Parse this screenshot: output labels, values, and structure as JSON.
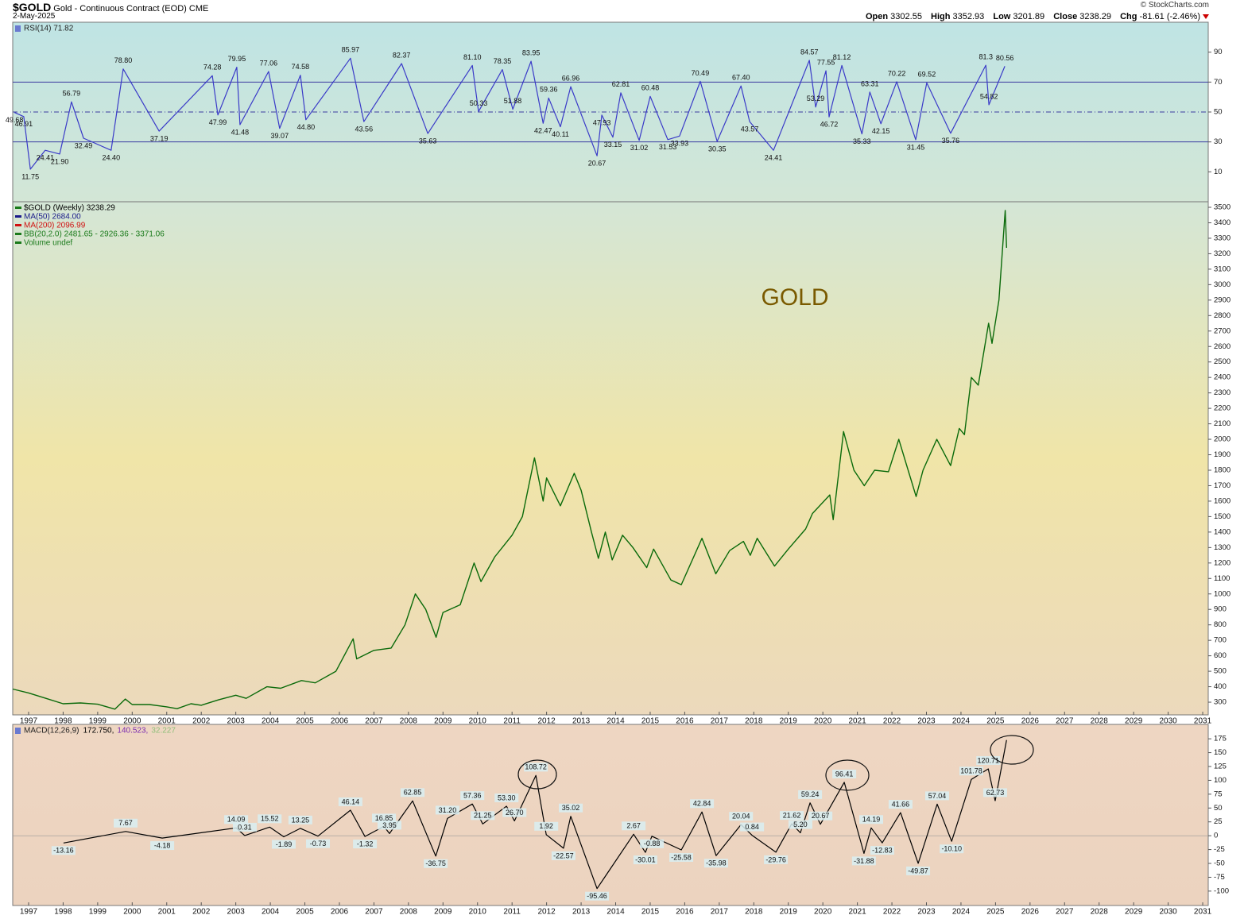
{
  "header": {
    "symbol": "$GOLD",
    "name": "Gold - Continuous Contract (EOD)",
    "exchange": "CME",
    "date": "2-May-2025",
    "credit": "© StockCharts.com",
    "quote": [
      {
        "label": "Open",
        "value": 3302.55
      },
      {
        "label": "High",
        "value": 3352.93
      },
      {
        "label": "Low",
        "value": 3201.89
      },
      {
        "label": "Close",
        "value": 3238.29
      },
      {
        "label": "Chg",
        "value": -81.61
      }
    ],
    "change_pct": "(-2.46%)"
  },
  "chart_data": [
    {
      "type": "line",
      "title": "RSI(14) 71.82",
      "color": "#3a3ac8",
      "background": [
        "#bfe4e4",
        "#d3e6d6"
      ],
      "xlim": [
        1996.54,
        2031.16
      ],
      "ylim": [
        -10,
        110
      ],
      "yticks": [
        10,
        30,
        50,
        70,
        90
      ],
      "hlines": [
        70,
        50,
        30
      ],
      "hline_dash": [
        false,
        true,
        false
      ],
      "data_labels": true,
      "x": [
        1996.59,
        1996.86,
        1997.05,
        1997.48,
        1997.9,
        1998.24,
        1998.59,
        1999.39,
        1999.74,
        2000.78,
        2002.32,
        2002.48,
        2003.03,
        2003.12,
        2003.95,
        2004.27,
        2004.87,
        2005.03,
        2006.32,
        2006.71,
        2007.8,
        2008.56,
        2009.85,
        2010.03,
        2010.72,
        2011.02,
        2011.55,
        2011.9,
        2012.06,
        2012.4,
        2012.7,
        2013.46,
        2013.6,
        2013.92,
        2014.15,
        2014.68,
        2015.0,
        2015.51,
        2015.85,
        2016.45,
        2016.94,
        2017.63,
        2017.88,
        2018.57,
        2019.61,
        2019.79,
        2020.09,
        2020.18,
        2020.55,
        2021.13,
        2021.36,
        2021.68,
        2022.14,
        2022.69,
        2023.01,
        2023.7,
        2024.72,
        2024.81,
        2025.27
      ],
      "values": [
        49.68,
        46.91,
        11.75,
        24.41,
        21.9,
        56.79,
        32.49,
        24.4,
        78.8,
        37.19,
        74.28,
        47.99,
        79.95,
        41.48,
        77.06,
        39.07,
        74.58,
        44.8,
        85.97,
        43.56,
        82.37,
        35.63,
        81.1,
        50.33,
        78.35,
        51.88,
        83.95,
        42.47,
        59.36,
        40.11,
        66.96,
        20.67,
        47.93,
        33.15,
        62.81,
        31.02,
        60.48,
        31.53,
        33.93,
        70.49,
        30.35,
        67.4,
        43.57,
        24.41,
        84.57,
        53.29,
        77.55,
        46.72,
        81.12,
        35.33,
        63.31,
        42.15,
        70.22,
        31.45,
        69.52,
        35.76,
        81.3,
        54.82,
        80.56
      ],
      "value_labels": [
        "49.68",
        "46.91",
        "11.75",
        "24.41",
        "21.90",
        "56.79",
        "32.49",
        "24.40",
        "78.80",
        "37.19",
        "74.28",
        "47.99",
        "79.95",
        "41.48",
        "77.06",
        "39.07",
        "74.58",
        "44.80",
        "85.97",
        "43.56",
        "82.37",
        "35.63",
        "81.10",
        "50.33",
        "78.35",
        "51.88",
        "83.95",
        "42.47",
        "59.36",
        "40.11",
        "66.96",
        "20.67",
        "47.93",
        "33.15",
        "62.81",
        "31.02",
        "60.48",
        "31.53",
        "33.93",
        "70.49",
        "30.35",
        "67.40",
        "43.57",
        "24.41",
        "84.57",
        "53.29",
        "77.55",
        "46.72",
        "81.12",
        "35.33",
        "63.31",
        "42.15",
        "70.22",
        "31.45",
        "69.52",
        "35.76",
        "81.3",
        "54.82",
        "80.56"
      ]
    },
    {
      "type": "line",
      "color": "#0a6a0a",
      "background": [
        "#d4e6d6",
        "#f0e5a8",
        "#ecd9bc"
      ],
      "legend": [
        {
          "label": "$GOLD (Weekly) 3238.29",
          "color": "#000000"
        },
        {
          "label": "MA(50) 2684.00",
          "color": "#1a1a8a"
        },
        {
          "label": "MA(200) 2096.99",
          "color": "#d01010"
        },
        {
          "label": "BB(20,2.0) 2481.65 - 2926.36 - 3371.06",
          "color": "#1a7a1a"
        },
        {
          "label": "Volume undef",
          "color": "#1a7a1a"
        }
      ],
      "annotations": [
        "GOLD"
      ],
      "xlim": [
        1996.54,
        2031.16
      ],
      "xticks": [
        1997,
        1998,
        1999,
        2000,
        2001,
        2002,
        2003,
        2004,
        2005,
        2006,
        2007,
        2008,
        2009,
        2010,
        2011,
        2012,
        2013,
        2014,
        2015,
        2016,
        2017,
        2018,
        2019,
        2020,
        2021,
        2022,
        2023,
        2024,
        2025,
        2026,
        2027,
        2028,
        2029,
        2030,
        2031
      ],
      "ylim": [
        218,
        3536
      ],
      "yticks": [
        300,
        400,
        500,
        600,
        700,
        800,
        900,
        1000,
        1100,
        1200,
        1300,
        1400,
        1500,
        1600,
        1700,
        1800,
        1900,
        2000,
        2100,
        2200,
        2300,
        2400,
        2500,
        2600,
        2700,
        2800,
        2900,
        3000,
        3100,
        3200,
        3300,
        3400,
        3500
      ],
      "x": [
        1996.54,
        1997.0,
        1997.5,
        1998.0,
        1998.5,
        1999.0,
        1999.5,
        1999.8,
        2000.0,
        2000.5,
        2001.0,
        2001.3,
        2001.7,
        2002.0,
        2002.5,
        2003.0,
        2003.3,
        2003.9,
        2004.3,
        2004.9,
        2005.3,
        2005.9,
        2006.4,
        2006.5,
        2007.0,
        2007.5,
        2007.9,
        2008.2,
        2008.5,
        2008.8,
        2009.0,
        2009.5,
        2009.9,
        2010.1,
        2010.5,
        2011.0,
        2011.3,
        2011.65,
        2011.9,
        2012.0,
        2012.4,
        2012.8,
        2013.0,
        2013.3,
        2013.5,
        2013.7,
        2013.9,
        2014.2,
        2014.5,
        2014.9,
        2015.1,
        2015.6,
        2015.9,
        2016.5,
        2016.9,
        2017.3,
        2017.7,
        2017.9,
        2018.1,
        2018.6,
        2019.0,
        2019.5,
        2019.7,
        2020.2,
        2020.3,
        2020.6,
        2020.9,
        2021.2,
        2021.5,
        2021.9,
        2022.2,
        2022.7,
        2022.9,
        2023.3,
        2023.7,
        2023.95,
        2024.1,
        2024.3,
        2024.5,
        2024.8,
        2024.9,
        2025.1,
        2025.28,
        2025.32
      ],
      "values": [
        385,
        360,
        325,
        290,
        295,
        287,
        255,
        320,
        285,
        285,
        270,
        258,
        290,
        280,
        315,
        345,
        325,
        400,
        390,
        440,
        425,
        500,
        710,
        580,
        635,
        650,
        800,
        1000,
        900,
        720,
        880,
        930,
        1200,
        1080,
        1240,
        1380,
        1500,
        1880,
        1600,
        1750,
        1570,
        1780,
        1670,
        1400,
        1230,
        1400,
        1220,
        1380,
        1300,
        1170,
        1290,
        1090,
        1060,
        1360,
        1130,
        1280,
        1340,
        1250,
        1360,
        1180,
        1290,
        1420,
        1520,
        1640,
        1480,
        2050,
        1800,
        1700,
        1800,
        1790,
        2000,
        1630,
        1800,
        2000,
        1830,
        2070,
        2030,
        2400,
        2350,
        2750,
        2620,
        2900,
        3480,
        3238
      ]
    },
    {
      "type": "line",
      "title": "MACD(12,26,9)",
      "readout": [
        {
          "value": 172.75,
          "label": "172.750,",
          "color": "#000000"
        },
        {
          "value": 140.523,
          "label": "140.523,",
          "color": "#7a2ab0"
        },
        {
          "value": 32.227,
          "label": "32.227",
          "color": "#8fbf7a"
        }
      ],
      "color": "#000000",
      "background": [
        "#eed6c2",
        "#ecd3bf"
      ],
      "data_labels": true,
      "xlim": [
        1996.54,
        2031.16
      ],
      "xticks": [
        1997,
        1998,
        1999,
        2000,
        2001,
        2002,
        2003,
        2004,
        2005,
        2006,
        2007,
        2008,
        2009,
        2010,
        2011,
        2012,
        2013,
        2014,
        2015,
        2016,
        2017,
        2018,
        2019,
        2020,
        2021,
        2022,
        2023,
        2024,
        2025,
        2026,
        2027,
        2028,
        2029,
        2030,
        2031
      ],
      "ylim": [
        -126,
        201
      ],
      "yticks": [
        -100,
        -75,
        -50,
        -25,
        0,
        25,
        50,
        75,
        100,
        125,
        150,
        175
      ],
      "x": [
        1998.01,
        1999.81,
        2000.87,
        2003.01,
        2003.26,
        2003.98,
        2004.39,
        2004.87,
        2005.38,
        2006.32,
        2006.74,
        2007.29,
        2007.45,
        2008.12,
        2008.79,
        2009.13,
        2009.85,
        2010.15,
        2010.84,
        2011.07,
        2011.69,
        2011.99,
        2012.49,
        2012.7,
        2013.46,
        2014.52,
        2014.86,
        2015.05,
        2015.9,
        2016.5,
        2016.91,
        2017.63,
        2017.95,
        2018.64,
        2019.1,
        2019.35,
        2019.63,
        2019.93,
        2020.62,
        2021.19,
        2021.4,
        2021.72,
        2022.25,
        2022.76,
        2023.31,
        2023.73,
        2024.3,
        2024.79,
        2024.99
      ],
      "values": [
        -13.16,
        7.67,
        -4.18,
        14.09,
        0.31,
        15.52,
        -1.89,
        13.25,
        -0.73,
        46.14,
        -1.32,
        16.85,
        3.95,
        62.85,
        -36.75,
        31.2,
        57.36,
        21.25,
        53.3,
        26.7,
        108.72,
        1.92,
        -22.57,
        35.02,
        -95.46,
        2.67,
        -30.01,
        -0.88,
        -25.58,
        42.84,
        -35.98,
        20.04,
        0.84,
        -29.76,
        21.62,
        5.2,
        59.24,
        20.67,
        96.41,
        -31.88,
        14.19,
        -12.83,
        41.66,
        -49.87,
        57.04,
        -10.1,
        101.78,
        120.71,
        62.73
      ],
      "value_labels": [
        "-13.16",
        "7.67",
        "-4.18",
        "14.09",
        "0.31",
        "15.52",
        "-1.89",
        "13.25",
        "-0.73",
        "46.14",
        "-1.32",
        "16.85",
        "3.95",
        "62.85",
        "-36.75",
        "31.20",
        "57.36",
        "21.25",
        "53.30",
        "26.70",
        "108.72",
        "1.92",
        "-22.57",
        "35.02",
        "-95.46",
        "2.67",
        "-30.01",
        "-0.88",
        "-25.58",
        "42.84",
        "-35.98",
        "20.04",
        "0.84",
        "-29.76",
        "21.62",
        "5.20",
        "59.24",
        "20.67",
        "96.41",
        "-31.88",
        "14.19",
        "-12.83",
        "41.66",
        "-49.87",
        "57.04",
        "-10.10",
        "101.78",
        "120.71",
        "62.73"
      ]
    }
  ]
}
